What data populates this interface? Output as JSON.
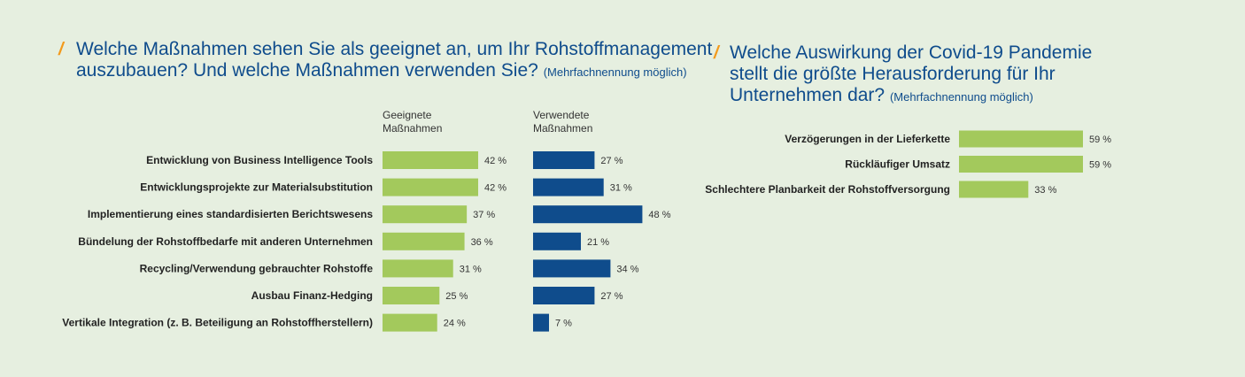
{
  "colors": {
    "background": "#e6efe0",
    "title": "#0f4c8c",
    "accent_slash": "#f39a1c",
    "bar_green": "#a3c95c",
    "bar_blue": "#0f4c8c"
  },
  "left": {
    "slash": "/",
    "title_line1": "Welche Maßnahmen sehen Sie als geeignet an, um Ihr Rohstoffmanagement",
    "title_line2": "auszubauen? Und welche Maßnahmen verwenden Sie?",
    "note": "(Mehrfachnennung möglich)",
    "col1_line1": "Geeignete",
    "col1_line2": "Maßnahmen",
    "col2_line1": "Verwendete",
    "col2_line2": "Maßnahmen"
  },
  "right": {
    "slash": "/",
    "title_line1": "Welche Auswirkung der Covid-19 Pandemie",
    "title_line2": "stellt die größte Herausforderung für Ihr",
    "title_line3": "Unternehmen dar?",
    "note": "(Mehrfachnennung möglich)"
  },
  "chart_data": [
    {
      "type": "bar",
      "orientation": "horizontal",
      "categories": [
        "Entwicklung von Business Intelligence Tools",
        "Entwicklungsprojekte zur Materialsubstitution",
        "Implementierung eines standardisierten Berichtswesens",
        "Bündelung der Rohstoffbedarfe mit anderen Unternehmen",
        "Recycling/Verwendung gebrauchter Rohstoffe",
        "Ausbau Finanz-Hedging",
        "Vertikale Integration (z. B. Beteiligung an Rohstoffherstellern)"
      ],
      "series": [
        {
          "name": "Geeignete Maßnahmen",
          "values": [
            42,
            42,
            37,
            36,
            31,
            25,
            24
          ],
          "labels": [
            "42 %",
            "42 %",
            "37 %",
            "36 %",
            "31 %",
            "25 %",
            "24 %"
          ],
          "color": "#a3c95c"
        },
        {
          "name": "Verwendete Maßnahmen",
          "values": [
            27,
            31,
            48,
            21,
            34,
            27,
            7
          ],
          "labels": [
            "27 %",
            "31 %",
            "48 %",
            "21 %",
            "34 %",
            "27 %",
            "7 %"
          ],
          "color": "#0f4c8c"
        }
      ],
      "unit": "%",
      "grid": false
    },
    {
      "type": "bar",
      "orientation": "horizontal",
      "categories": [
        "Verzögerungen in der Lieferkette",
        "Rückläufiger Umsatz",
        "Schlechtere Planbarkeit der Rohstoffversorgung"
      ],
      "series": [
        {
          "values": [
            59,
            59,
            33
          ],
          "labels": [
            "59 %",
            "59 %",
            "33 %"
          ],
          "color": "#a3c95c"
        }
      ],
      "unit": "%",
      "grid": false
    }
  ]
}
